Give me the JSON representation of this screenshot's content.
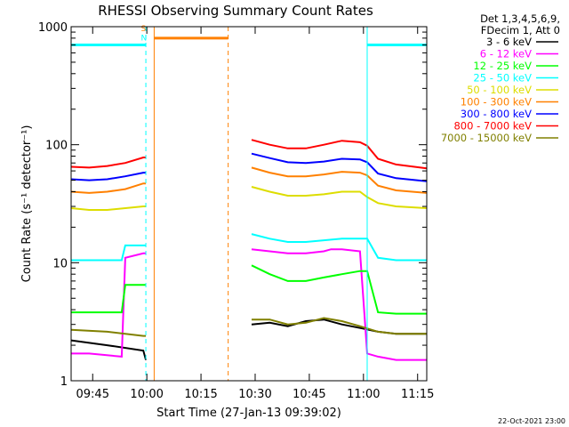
{
  "chart_data": {
    "type": "line",
    "title": "RHESSI Observing Summary Count Rates",
    "xlabel": "Start Time (27-Jan-13 09:39:02)",
    "ylabel": "Count Rate (s⁻¹ detector⁻¹)",
    "y_scale": "log",
    "ylim": [
      1,
      1000
    ],
    "xlim_minutes": [
      0,
      98.5
    ],
    "x_ticks": [
      {
        "minute": 5.97,
        "label": "09:45"
      },
      {
        "minute": 20.97,
        "label": "10:00"
      },
      {
        "minute": 35.97,
        "label": "10:15"
      },
      {
        "minute": 50.97,
        "label": "10:30"
      },
      {
        "minute": 65.97,
        "label": "10:45"
      },
      {
        "minute": 80.97,
        "label": "11:00"
      },
      {
        "minute": 95.97,
        "label": "11:15"
      }
    ],
    "y_ticks": [
      {
        "value": 1,
        "label": "1"
      },
      {
        "value": 10,
        "label": "10"
      },
      {
        "value": 100,
        "label": "100"
      },
      {
        "value": 1000,
        "label": "1000"
      }
    ],
    "legend_header": [
      "Det 1,3,4,5,6,9,",
      "FDecim 1, Att 0"
    ],
    "legend_placement": "right",
    "timestamp": "22-Oct-2021 23:00",
    "series": [
      {
        "name": "3 - 6 keV",
        "color": "#000000",
        "segments": [
          {
            "x": [
              0,
              10,
              20,
              20.7
            ],
            "y": [
              2.2,
              2.0,
              1.8,
              1.5
            ]
          },
          {
            "x": [
              50,
              55,
              60,
              65,
              70,
              75,
              80,
              85,
              90,
              98.5
            ],
            "y": [
              3.0,
              3.1,
              2.9,
              3.2,
              3.3,
              3.0,
              2.8,
              2.6,
              2.5,
              2.5
            ]
          }
        ]
      },
      {
        "name": "6 - 12 keV",
        "color": "#ff00ff",
        "segments": [
          {
            "x": [
              0,
              5,
              14,
              15,
              20,
              20.7
            ],
            "y": [
              1.7,
              1.7,
              1.6,
              11,
              12,
              12
            ]
          },
          {
            "x": [
              50,
              55,
              60,
              65,
              70,
              72,
              75,
              80,
              82,
              85,
              90,
              98.5
            ],
            "y": [
              13,
              12.5,
              12,
              12,
              12.5,
              13,
              13,
              12.5,
              1.7,
              1.6,
              1.5,
              1.5
            ]
          }
        ]
      },
      {
        "name": "12 - 25 keV",
        "color": "#00ff00",
        "segments": [
          {
            "x": [
              0,
              5,
              14,
              15,
              20,
              20.7
            ],
            "y": [
              3.8,
              3.8,
              3.8,
              6.5,
              6.5,
              6.5
            ]
          },
          {
            "x": [
              50,
              55,
              60,
              65,
              70,
              75,
              80,
              82,
              85,
              90,
              98.5
            ],
            "y": [
              9.5,
              8.0,
              7.0,
              7.0,
              7.5,
              8.0,
              8.5,
              8.5,
              3.8,
              3.7,
              3.7
            ]
          }
        ]
      },
      {
        "name": "25 - 50 keV",
        "color": "#00ffff",
        "segments": [
          {
            "x": [
              0,
              5,
              14,
              15,
              20,
              20.7
            ],
            "y": [
              10.5,
              10.5,
              10.5,
              14,
              14,
              14
            ]
          },
          {
            "x": [
              50,
              55,
              60,
              65,
              70,
              75,
              80,
              82,
              85,
              90,
              98.5
            ],
            "y": [
              17.5,
              16,
              15,
              15,
              15.5,
              16,
              16,
              16,
              11,
              10.5,
              10.5
            ]
          }
        ]
      },
      {
        "name": "50 - 100 keV",
        "color": "#dddd00",
        "segments": [
          {
            "x": [
              0,
              5,
              10,
              15,
              20,
              20.7
            ],
            "y": [
              29,
              28,
              28,
              29,
              30,
              30
            ]
          },
          {
            "x": [
              50,
              55,
              60,
              65,
              70,
              75,
              80,
              82,
              85,
              90,
              98.5
            ],
            "y": [
              44,
              40,
              37,
              37,
              38,
              40,
              40,
              36,
              32,
              30,
              29
            ]
          }
        ]
      },
      {
        "name": "100 - 300 keV",
        "color": "#ff8000",
        "segments": [
          {
            "x": [
              0,
              5,
              10,
              15,
              20,
              20.7
            ],
            "y": [
              40,
              39,
              40,
              42,
              47,
              47
            ]
          },
          {
            "x": [
              50,
              55,
              60,
              65,
              70,
              75,
              80,
              82,
              85,
              90,
              98.5
            ],
            "y": [
              64,
              58,
              54,
              54,
              56,
              59,
              58,
              55,
              45,
              41,
              39
            ]
          }
        ]
      },
      {
        "name": "300 - 800 keV",
        "color": "#0000ff",
        "segments": [
          {
            "x": [
              0,
              5,
              10,
              15,
              20,
              20.7
            ],
            "y": [
              51,
              50,
              51,
              54,
              58,
              58
            ]
          },
          {
            "x": [
              50,
              55,
              60,
              65,
              70,
              75,
              80,
              82,
              85,
              90,
              98.5
            ],
            "y": [
              84,
              77,
              71,
              70,
              72,
              76,
              75,
              71,
              57,
              52,
              49
            ]
          }
        ]
      },
      {
        "name": "800 - 7000 keV",
        "color": "#ff0000",
        "segments": [
          {
            "x": [
              0,
              5,
              10,
              15,
              20,
              20.7
            ],
            "y": [
              65,
              64,
              66,
              70,
              78,
              78
            ]
          },
          {
            "x": [
              50,
              55,
              60,
              65,
              70,
              75,
              80,
              82,
              85,
              90,
              98.5
            ],
            "y": [
              110,
              100,
              93,
              93,
              100,
              108,
              105,
              98,
              76,
              68,
              63
            ]
          }
        ]
      },
      {
        "name": "7000 - 15000 keV",
        "color": "#808000",
        "segments": [
          {
            "x": [
              0,
              10,
              20,
              20.7
            ],
            "y": [
              2.7,
              2.6,
              2.4,
              2.4
            ]
          },
          {
            "x": [
              50,
              55,
              60,
              65,
              70,
              75,
              80,
              85,
              90,
              98.5
            ],
            "y": [
              3.3,
              3.3,
              3.0,
              3.1,
              3.4,
              3.2,
              2.9,
              2.6,
              2.5,
              2.5
            ]
          }
        ]
      }
    ],
    "events": [
      {
        "kind": "SAA",
        "color": "#00ffff",
        "level": 700,
        "segments": [
          [
            0,
            20.7
          ],
          [
            82,
            98.5
          ]
        ],
        "boundaries": [
          0,
          20.7,
          82,
          98.5
        ],
        "dashed_boundaries": [
          20.7,
          98.5
        ]
      },
      {
        "kind": "night",
        "color": "#ff8000",
        "level": 800,
        "segments": [
          [
            23,
            43.5
          ]
        ],
        "boundaries": [
          23,
          43.5
        ],
        "dashed_boundaries": [
          43.5
        ]
      }
    ],
    "markers": [
      {
        "text": "S",
        "color": "#ff8000",
        "minute": 20.8,
        "level": 980
      },
      {
        "text": "N",
        "color": "#00ffff",
        "minute": 20.8,
        "level": 820
      }
    ]
  }
}
